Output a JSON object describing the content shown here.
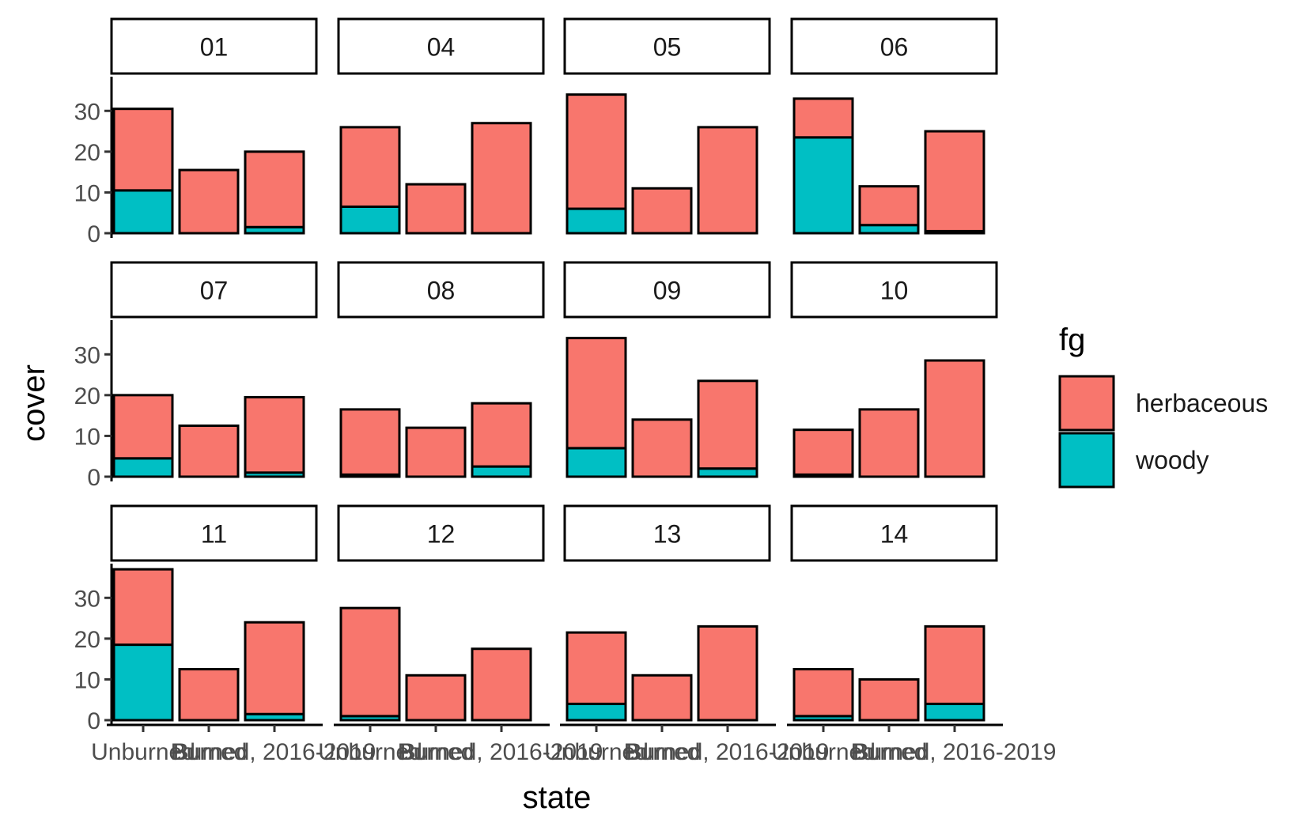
{
  "chart_data": {
    "type": "bar",
    "stacked": true,
    "facet_by": "site",
    "xlabel": "state",
    "ylabel": "cover",
    "categories": [
      "Unburned",
      "Burned",
      "Burned, 2016-2019"
    ],
    "x_tick_labels_rendered": [
      "Unburned",
      "Burned",
      "Burned, 2016-2019"
    ],
    "y_ticks": [
      0,
      10,
      20,
      30
    ],
    "ylim": [
      0,
      38
    ],
    "legend": {
      "title": "fg",
      "placement": "right",
      "entries": [
        {
          "name": "herbaceous",
          "color": "#F8766D"
        },
        {
          "name": "woody",
          "color": "#00BFC4"
        }
      ]
    },
    "series": [
      {
        "name": "woody",
        "color": "#00BFC4"
      },
      {
        "name": "herbaceous",
        "color": "#F8766D"
      }
    ],
    "panels": [
      {
        "label": "01",
        "woody": [
          10.5,
          0,
          1.5
        ],
        "herbaceous": [
          20,
          15.5,
          18.5
        ]
      },
      {
        "label": "04",
        "woody": [
          6.5,
          0,
          0
        ],
        "herbaceous": [
          19.5,
          12,
          27
        ]
      },
      {
        "label": "05",
        "woody": [
          6,
          0,
          0
        ],
        "herbaceous": [
          28,
          11,
          26
        ]
      },
      {
        "label": "06",
        "woody": [
          23.5,
          2,
          0.5
        ],
        "herbaceous": [
          9.5,
          9.5,
          24.5
        ]
      },
      {
        "label": "07",
        "woody": [
          4.5,
          0,
          1
        ],
        "herbaceous": [
          15.5,
          12.5,
          18.5
        ]
      },
      {
        "label": "08",
        "woody": [
          0.5,
          0,
          2.5
        ],
        "herbaceous": [
          16,
          12,
          15.5
        ]
      },
      {
        "label": "09",
        "woody": [
          7,
          0,
          2
        ],
        "herbaceous": [
          27,
          14,
          21.5
        ]
      },
      {
        "label": "10",
        "woody": [
          0.5,
          0,
          0
        ],
        "herbaceous": [
          11,
          16.5,
          28.5
        ]
      },
      {
        "label": "11",
        "woody": [
          18.5,
          0,
          1.5
        ],
        "herbaceous": [
          18.5,
          12.5,
          22.5
        ]
      },
      {
        "label": "12",
        "woody": [
          1,
          0,
          0
        ],
        "herbaceous": [
          26.5,
          11,
          17.5
        ]
      },
      {
        "label": "13",
        "woody": [
          4,
          0,
          0
        ],
        "herbaceous": [
          17.5,
          11,
          23
        ]
      },
      {
        "label": "14",
        "woody": [
          1,
          0,
          4
        ],
        "herbaceous": [
          11.5,
          10,
          19
        ]
      }
    ],
    "grid": false
  }
}
